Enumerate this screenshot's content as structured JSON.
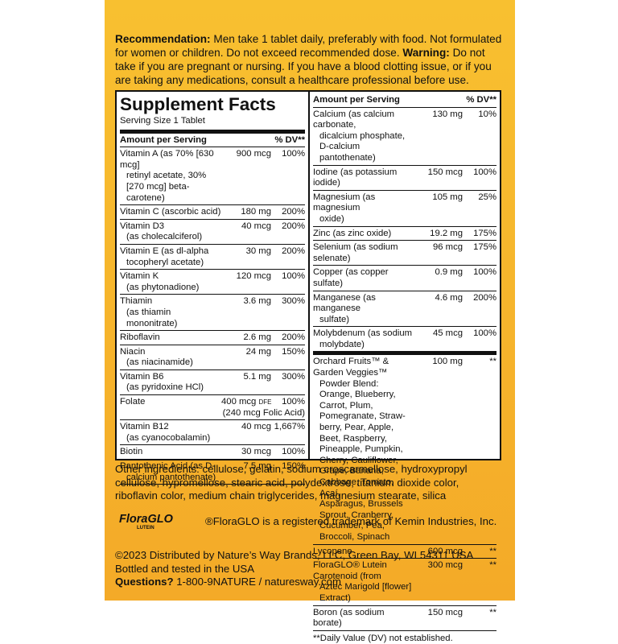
{
  "recommendation": {
    "label": "Recommendation:",
    "text": "Men take 1 tablet daily, preferably with food. Not formulated for women or children. Do not exceed recommended dose.",
    "warning_label": "Warning:",
    "warning_text": "Do not take if you are pregnant or nursing. If you have a blood clotting issue, or if you are taking any medications, consult a healthcare professional before use."
  },
  "supplement_facts": {
    "title": "Supplement Facts",
    "serving_size": "Serving Size 1 Tablet",
    "left_header": {
      "amount": "Amount per Serving",
      "dv": "% DV**"
    },
    "right_header": {
      "amount": "Amount per Serving",
      "dv": "% DV**"
    },
    "left_rows": [
      {
        "name": [
          "Vitamin A (as 70% [630 mcg]",
          "retinyl acetate, 30%",
          "[270 mcg] beta-carotene)"
        ],
        "amount": "900 mcg",
        "dv": "100%"
      },
      {
        "name": [
          "Vitamin C (ascorbic acid)"
        ],
        "amount": "180 mg",
        "dv": "200%"
      },
      {
        "name": [
          "Vitamin D3",
          "(as cholecalciferol)"
        ],
        "amount": "40 mcg",
        "dv": "200%"
      },
      {
        "name": [
          "Vitamin E (as dl-alpha",
          "tocopheryl acetate)"
        ],
        "amount": "30 mg",
        "dv": "200%"
      },
      {
        "name": [
          "Vitamin K",
          "(as phytonadione)"
        ],
        "amount": "120 mcg",
        "dv": "100%"
      },
      {
        "name": [
          "Thiamin",
          "(as thiamin mononitrate)"
        ],
        "amount": "3.6 mg",
        "dv": "300%"
      },
      {
        "name": [
          "Riboflavin"
        ],
        "amount": "2.6 mg",
        "dv": "200%"
      },
      {
        "name": [
          "Niacin",
          "(as niacinamide)"
        ],
        "amount": "24 mg",
        "dv": "150%"
      },
      {
        "name": [
          "Vitamin B6",
          "(as pyridoxine HCl)"
        ],
        "amount": "5.1 mg",
        "dv": "300%"
      },
      {
        "name": [
          "Folate"
        ],
        "amount": "400 mcg",
        "amount_unit": "DFE",
        "dv": "100%",
        "note": "(240 mcg Folic Acid)"
      },
      {
        "name": [
          "Vitamin B12",
          "(as cyanocobalamin)"
        ],
        "amount": "40 mcg",
        "dv": "1,667%"
      },
      {
        "name": [
          "Biotin"
        ],
        "amount": "30 mcg",
        "dv": "100%"
      },
      {
        "name": [
          "Pantothenic Acid (as D-",
          "calcium pantothenate)"
        ],
        "amount": "7.5 mg",
        "dv": "150%"
      }
    ],
    "right_rows": [
      {
        "name": [
          "Calcium (as calcium carbonate,",
          "dicalcium phosphate,",
          "D-calcium pantothenate)"
        ],
        "amount": "130 mg",
        "dv": "10%"
      },
      {
        "name": [
          "Iodine (as potassium iodide)"
        ],
        "amount": "150 mcg",
        "dv": "100%"
      },
      {
        "name": [
          "Magnesium (as magnesium",
          "oxide)"
        ],
        "amount": "105 mg",
        "dv": "25%"
      },
      {
        "name": [
          "Zinc (as zinc oxide)"
        ],
        "amount": "19.2 mg",
        "dv": "175%"
      },
      {
        "name": [
          "Selenium (as sodium selenate)"
        ],
        "amount": "96 mcg",
        "dv": "175%"
      },
      {
        "name": [
          "Copper (as copper sulfate)"
        ],
        "amount": "0.9 mg",
        "dv": "100%"
      },
      {
        "name": [
          "Manganese (as manganese",
          "sulfate)"
        ],
        "amount": "4.6 mg",
        "dv": "200%"
      },
      {
        "name": [
          "Molybdenum (as sodium",
          "molybdate)"
        ],
        "amount": "45 mcg",
        "dv": "100%"
      }
    ],
    "right_rows_2": [
      {
        "name": [
          "Orchard Fruits™ & Garden Veggies™",
          "Powder Blend: Orange, Blueberry,",
          "Carrot, Plum, Pomegranate, Straw-",
          "berry, Pear, Apple, Beet, Raspberry,",
          "Pineapple, Pumpkin, Cherry, Cauliflower,",
          "Grape, Banana, Cabbage, Tomato, Açaí,",
          "Asparagus, Brussels Sprout, Cranberry,",
          "Cucumber, Pea, Broccoli, Spinach"
        ],
        "amount": "100 mg",
        "dv": "**"
      },
      {
        "name": [
          "Lycopene"
        ],
        "amount": "600 mcg",
        "dv": "**"
      },
      {
        "name": [
          "FloraGLO® Lutein Carotenoid (from",
          "Aztec Marigold [flower] Extract)"
        ],
        "amount": "300 mcg",
        "dv": "**"
      },
      {
        "name": [
          "Boron (as sodium borate)"
        ],
        "amount": "150 mcg",
        "dv": "**"
      }
    ],
    "footnote": "**Daily Value (DV) not established."
  },
  "other_ingredients": "Other ingredients: cellulose, gelatin, sodium croscarmellose, hydroxypropyl cellulose, hypromellose, stearic acid, polydextrose, titanium dioxide color, riboflavin color, medium chain triglycerides, magnesium stearate, silica",
  "trademark": {
    "logo": "FloraGLO",
    "logo_sub": "LUTEIN",
    "text": "®FloraGLO is a registered trademark of Kemin Industries, Inc."
  },
  "footer": {
    "line1": "©2023 Distributed by Nature’s Way Brands, LLC, Green Bay, WI 54311 USA",
    "line2": "Bottled and tested in the USA",
    "questions_label": "Questions?",
    "questions_text": "1-800-9NATURE / naturesway.com"
  }
}
